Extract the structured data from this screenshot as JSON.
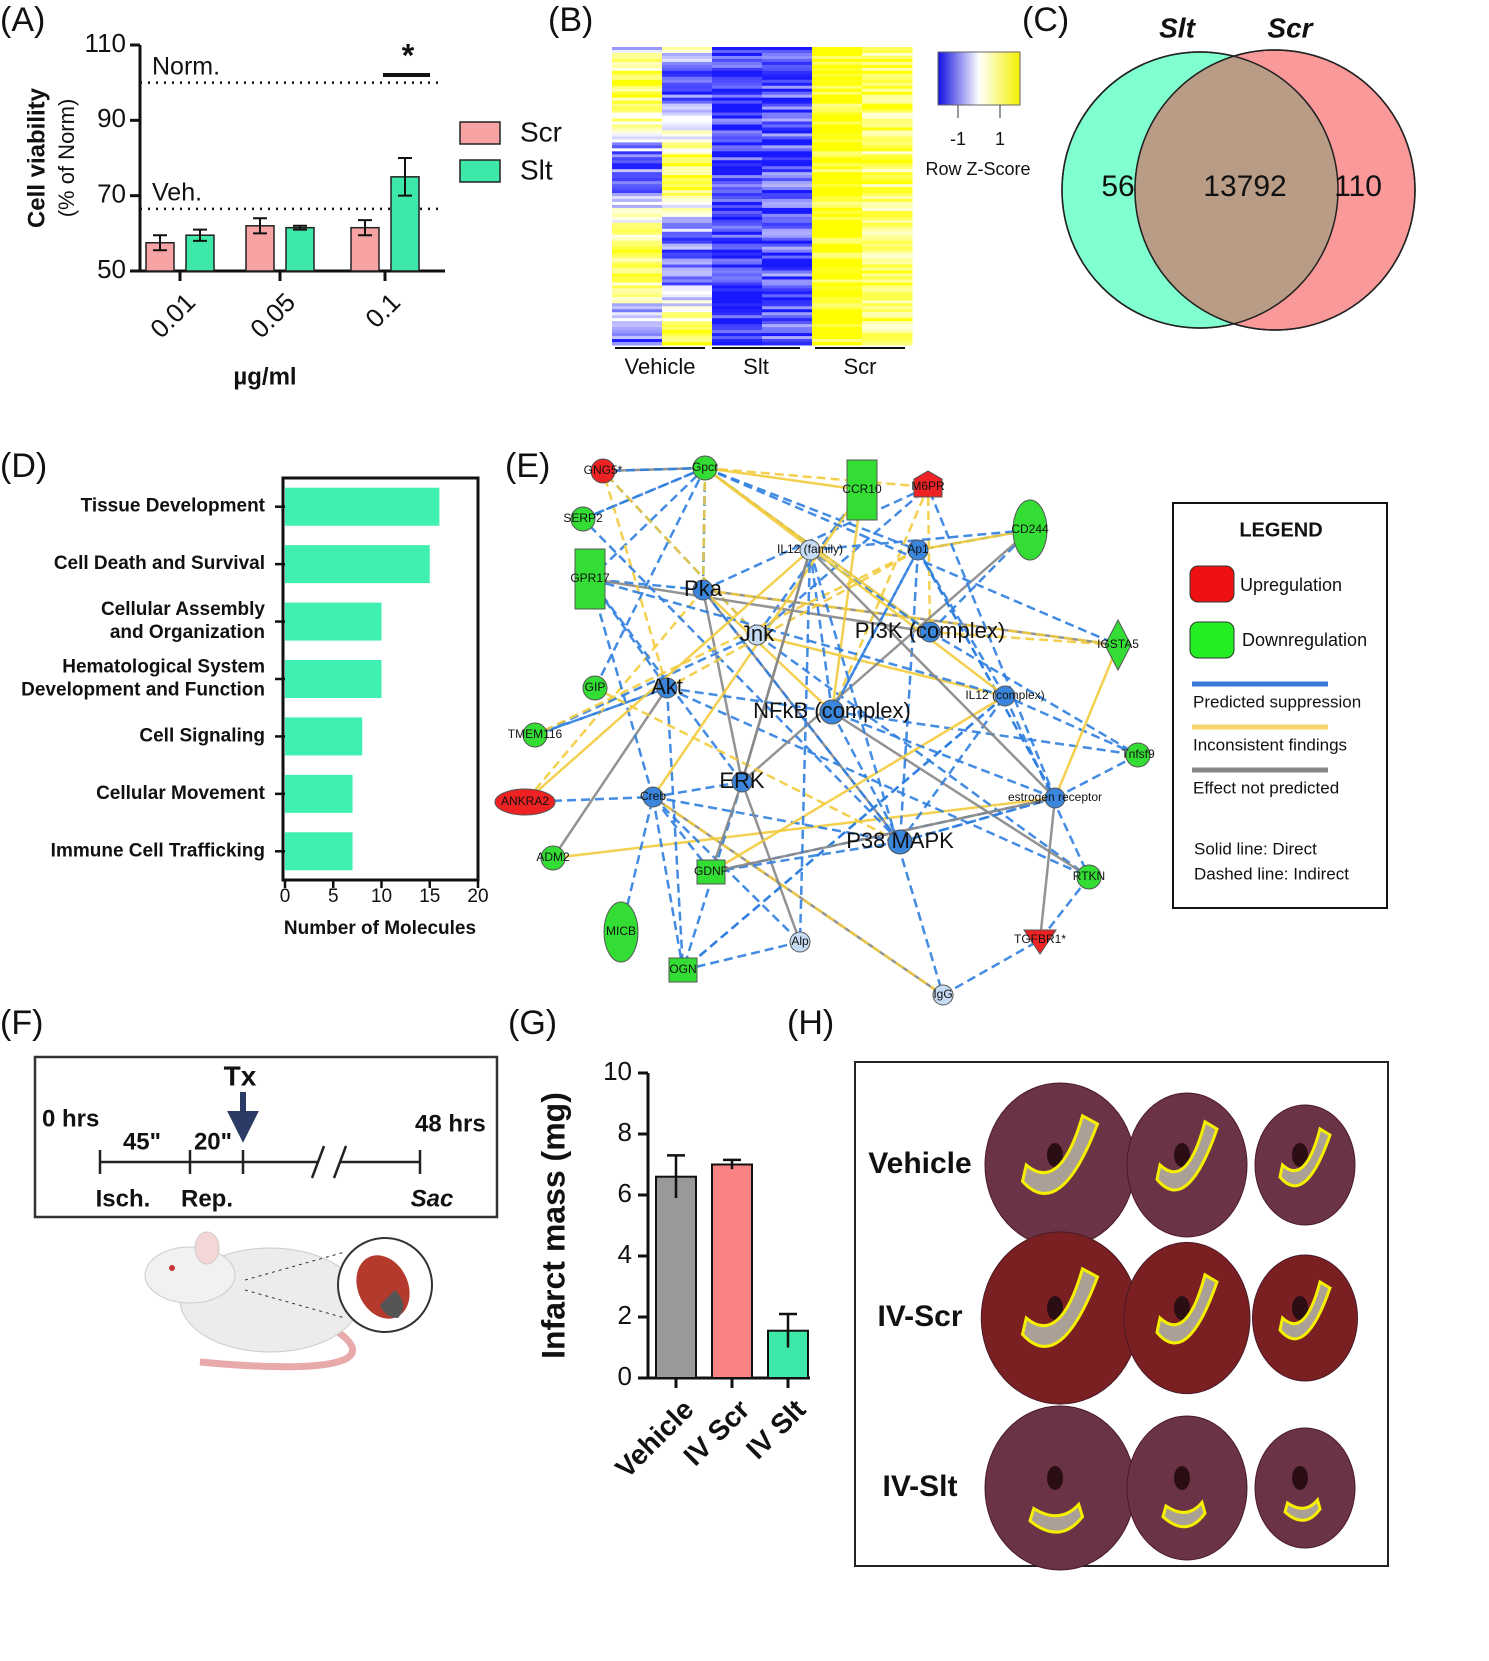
{
  "panel_letters": [
    "(A)",
    "(B)",
    "(C)",
    "(D)",
    "(E)",
    "(F)",
    "(G)",
    "(H)"
  ],
  "chart_data": [
    {
      "type": "bar",
      "ylabel": [
        "Cell viability",
        "(% of Norm)"
      ],
      "xlabel": "µg/ml",
      "categories": [
        "0.01",
        "0.05",
        "0.1"
      ],
      "series": [
        {
          "name": "Scr",
          "color": "#f7a3a3",
          "values": [
            57.5,
            62,
            61.5
          ],
          "errors": [
            2,
            2,
            2
          ]
        },
        {
          "name": "Slt",
          "color": "#3ee8a8",
          "values": [
            59.5,
            61.5,
            75
          ],
          "errors": [
            1.5,
            0.5,
            5
          ]
        }
      ],
      "ylim": [
        50,
        110
      ],
      "yticks": [
        50,
        70,
        90,
        110
      ],
      "reference_lines": [
        {
          "label": "Norm.",
          "value": 100
        },
        {
          "label": "Veh.",
          "value": 66.5
        }
      ],
      "annotation": "*"
    },
    {
      "type": "hbar",
      "xlabel": "Number of Molecules",
      "categories": [
        [
          "Tissue Development"
        ],
        [
          "Cell Death and Survival"
        ],
        [
          "Cellular Assembly",
          "and Organization"
        ],
        [
          "Hematological System",
          "Development and Function"
        ],
        [
          "Cell Signaling"
        ],
        [
          "Cellular Movement"
        ],
        [
          "Immune Cell Trafficking"
        ]
      ],
      "values": [
        16,
        15,
        10,
        10,
        8,
        7,
        7
      ],
      "color": "#40f0b0",
      "xlim": [
        0,
        20
      ],
      "xticks": [
        0,
        5,
        10,
        15,
        20
      ]
    },
    {
      "type": "bar",
      "ylabel": "Infarct mass (mg)",
      "categories": [
        "Vehicle",
        "IV Scr",
        "IV Slt"
      ],
      "values": [
        6.6,
        7.0,
        1.55
      ],
      "errors": [
        0.7,
        0.15,
        0.55
      ],
      "colors": [
        "#999999",
        "#f98282",
        "#3ee8a8"
      ],
      "ylim": [
        0,
        10
      ],
      "yticks": [
        0,
        2,
        4,
        6,
        8,
        10
      ]
    }
  ],
  "heatmap": {
    "groups": [
      "Vehicle",
      "Slt",
      "Scr"
    ],
    "colorbar_ticks": [
      "-1",
      "1"
    ],
    "colorbar_label": "Row Z-Score"
  },
  "venn": {
    "left_label": "Slt",
    "right_label": "Scr",
    "counts": [
      "56",
      "13792",
      "110"
    ]
  },
  "network": {
    "nodes": [
      "Gpcr",
      "GNG5*",
      "SERP2",
      "CCR10",
      "M6PR",
      "CD244",
      "IL12 (family)",
      "Ap1",
      "GPR17",
      "Pka",
      "Jnk",
      "PI3K (complex)",
      "IGSTA5",
      "GIP",
      "Akt",
      "IL12 (complex)",
      "NFkB (complex)",
      "TMEM116",
      "Tnfsf9",
      "ANKRA2",
      "Creb",
      "ERK",
      "estrogen receptor",
      "P38 MAPK",
      "ADM2",
      "RTKN",
      "GDNF",
      "MICB",
      "Alp",
      "TGFBR1*",
      "OGN",
      "IgG"
    ],
    "legend": {
      "title": "LEGEND",
      "items": [
        "Upregulation",
        "Downregulation",
        "Predicted suppression",
        "Inconsistent findings",
        "Effect not predicted"
      ],
      "notes": [
        "Solid line: Direct",
        "Dashed line: Indirect"
      ]
    }
  },
  "timeline": {
    "treatment": "Tx",
    "start": "0 hrs",
    "durations": [
      "45\"",
      "20\""
    ],
    "end": "48 hrs",
    "phases": [
      "Isch.",
      "Rep.",
      "Sac"
    ]
  },
  "hearts": {
    "rows": [
      "Vehicle",
      "IV-Scr",
      "IV-Slt"
    ]
  }
}
